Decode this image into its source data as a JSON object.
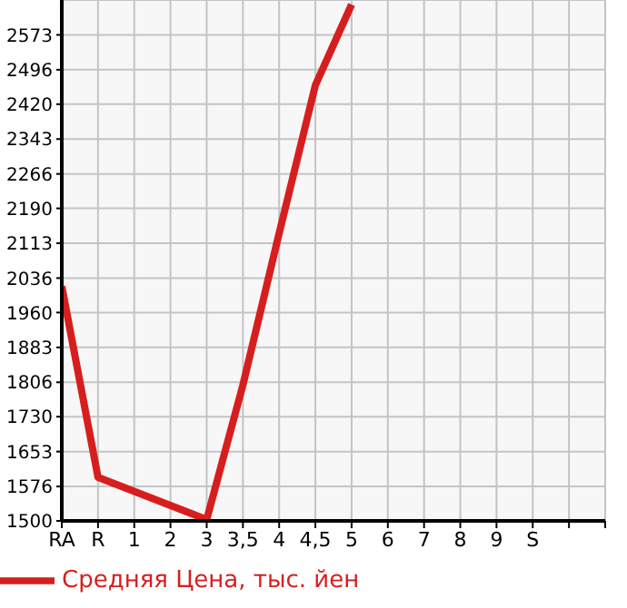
{
  "chart_data": {
    "type": "line",
    "categories": [
      "RA",
      "R",
      "1",
      "2",
      "3",
      "3,5",
      "4",
      "4,5",
      "5",
      "6",
      "7",
      "8",
      "9",
      "S",
      null
    ],
    "series": [
      {
        "name": "Средняя Цена, тыс. йен",
        "color": "#d71e1e",
        "values": [
          2018,
          1596,
          null,
          null,
          1503,
          1800,
          2135,
          2462,
          2640,
          null,
          null,
          null,
          null,
          null,
          null
        ]
      }
    ],
    "ylim": [
      1500,
      2650
    ],
    "yticks": [
      1500,
      1576,
      1653,
      1730,
      1806,
      1883,
      1960,
      2036,
      2113,
      2190,
      2266,
      2343,
      2420,
      2496,
      2573
    ],
    "grid": true,
    "legend": "bottom left",
    "marker": "none",
    "line_style": "solid"
  }
}
